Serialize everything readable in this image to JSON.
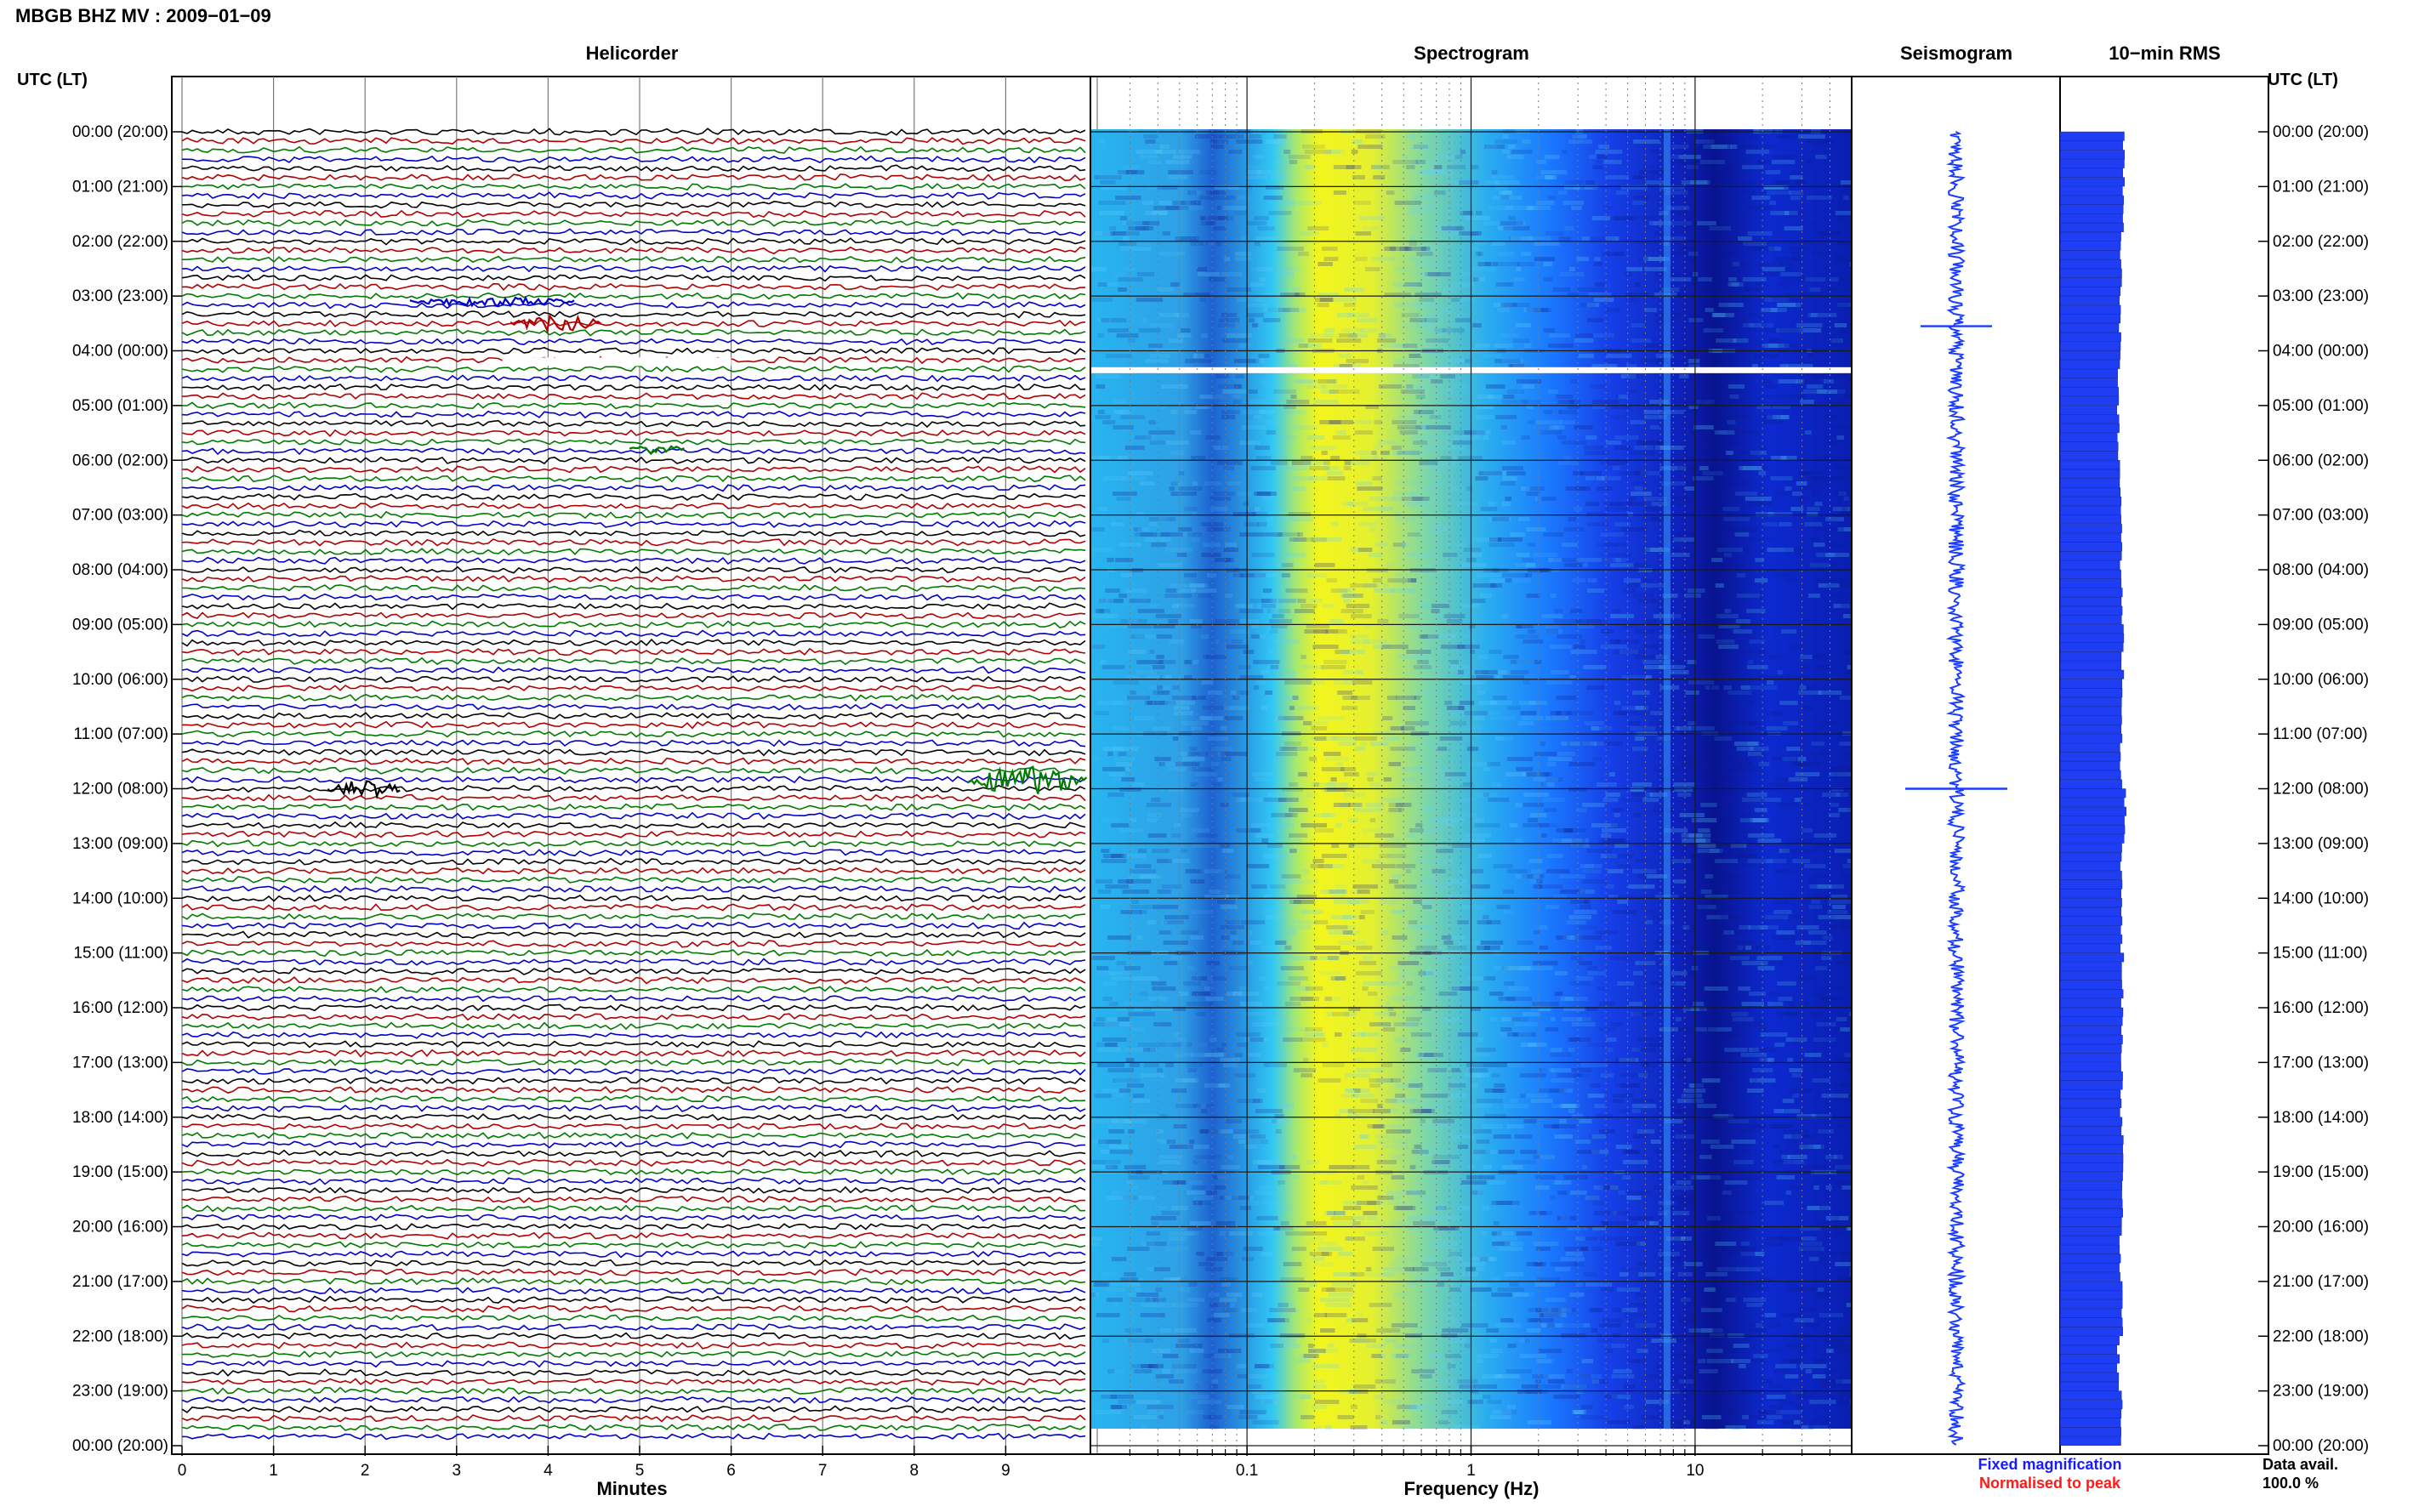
{
  "header": {
    "title": "MBGB BHZ MV : 2009−01−09",
    "utc_left": "UTC (LT)",
    "utc_right": "UTC (LT)"
  },
  "panels": {
    "helicorder": "Helicorder",
    "spectrogram": "Spectrogram",
    "seismogram": "Seismogram",
    "rms": "10−min RMS"
  },
  "colors": {
    "trace_cycle": [
      "#000000",
      "#b00000",
      "#007a00",
      "#0000c8"
    ],
    "seismogram": "#1a3cff",
    "rms_bar": "#1f3df2",
    "spec_low": "#00008b",
    "spec_mid": "#1aa8ff",
    "spec_high": "#f0f000",
    "legend_fixed": "#1a1aff",
    "legend_peak": "#ff1a1a"
  },
  "legend": {
    "fixed": "Fixed magnification",
    "normalised": "Normalised to peak",
    "availability_label": "Data avail.",
    "availability_value": "100.0 %"
  },
  "chart_data": [
    {
      "type": "line",
      "panel": "helicorder",
      "xlabel": "Minutes",
      "x_ticks": [
        "0",
        "1",
        "2",
        "3",
        "4",
        "5",
        "6",
        "7",
        "8",
        "9"
      ],
      "xlim": [
        0,
        10
      ],
      "lines_per_hour": 6,
      "row_labels": [
        "00:00 (20:00)",
        "01:00 (21:00)",
        "02:00 (22:00)",
        "03:00 (23:00)",
        "04:00 (00:00)",
        "05:00 (01:00)",
        "06:00 (02:00)",
        "07:00 (03:00)",
        "08:00 (04:00)",
        "09:00 (05:00)",
        "10:00 (06:00)",
        "11:00 (07:00)",
        "12:00 (08:00)",
        "13:00 (09:00)",
        "14:00 (10:00)",
        "15:00 (11:00)",
        "16:00 (12:00)",
        "17:00 (13:00)",
        "18:00 (14:00)",
        "19:00 (15:00)",
        "20:00 (16:00)",
        "21:00 (17:00)",
        "22:00 (18:00)",
        "23:00 (19:00)",
        "00:00 (20:00)"
      ],
      "events": [
        {
          "hour": 3.1,
          "minute_start": 2.5,
          "minute_end": 4.3,
          "amplitude": "small",
          "color": "#0000c8"
        },
        {
          "hour": 3.5,
          "minute_start": 3.6,
          "minute_end": 4.6,
          "amplitude": "moderate",
          "color": "#b00000"
        },
        {
          "hour": 4.2,
          "minute_start": 3.5,
          "minute_end": 6.0,
          "amplitude": "gap",
          "color": "#ffffff"
        },
        {
          "hour": 5.8,
          "minute_start": 4.9,
          "minute_end": 5.5,
          "amplitude": "small",
          "color": "#007a00"
        },
        {
          "hour": 12.0,
          "minute_start": 1.6,
          "minute_end": 2.4,
          "amplitude": "moderate",
          "color": "#000000"
        },
        {
          "hour": 11.85,
          "minute_start": 8.6,
          "minute_end": 9.9,
          "amplitude": "large",
          "color": "#007a00"
        }
      ]
    },
    {
      "type": "heatmap",
      "panel": "spectrogram",
      "xlabel": "Frequency (Hz)",
      "x_scale": "log",
      "xlim": [
        0.02,
        50
      ],
      "x_ticks": [
        "0.1",
        "1",
        "10"
      ],
      "y": "time UTC 00:00 to 24:00",
      "peak_band_hz": [
        0.15,
        0.4
      ],
      "notable_line_hz": 7.5,
      "gap_hour": 4.3
    },
    {
      "type": "line",
      "panel": "seismogram",
      "spikes": [
        {
          "hour": 3.55,
          "relative_amplitude": 0.7
        },
        {
          "hour": 12.0,
          "relative_amplitude": 1.0
        }
      ]
    },
    {
      "type": "bar",
      "panel": "rms",
      "orientation": "horizontal",
      "interval_minutes": 10,
      "hourly_relative_rms": [
        0.92,
        0.9,
        0.87,
        0.85,
        0.83,
        0.82,
        0.85,
        0.87,
        0.88,
        0.9,
        0.88,
        0.87,
        0.95,
        0.87,
        0.88,
        0.9,
        0.89,
        0.88,
        0.9,
        0.88,
        0.86,
        0.88,
        0.82,
        0.88
      ]
    }
  ]
}
